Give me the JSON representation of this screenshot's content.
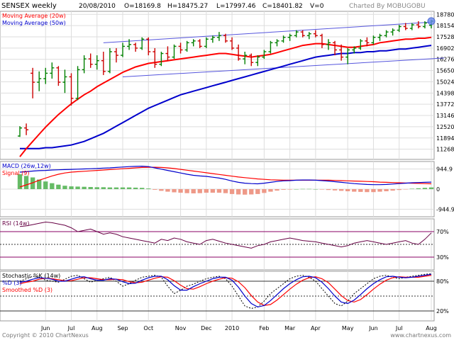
{
  "header": {
    "title": "SENSEX weekly",
    "date": "20/08/2010",
    "open": "O=18169.8",
    "high": "H=18475.27",
    "low": "L=17997.46",
    "close": "C=18401.82",
    "volume": "V=0",
    "charted_by": "Charted By MOBUGOBU"
  },
  "footer": {
    "copyright": "Copyright © 2010 ChartNexus",
    "brand": "www.chartnexus.com"
  },
  "colors": {
    "up_bar": "#008000",
    "down_bar": "#cc0000",
    "ma20": "#ff0000",
    "ma50": "#0000cc",
    "channel": "#5555dd",
    "macd_pos": "#66bb66",
    "macd_neg": "#ee9988",
    "rsi": "#660044",
    "rsi_ref": "#880066",
    "grid": "#dddddd"
  },
  "x_axis": {
    "labels": [
      {
        "text": "Jun",
        "idx": 4
      },
      {
        "text": "Jul",
        "idx": 8
      },
      {
        "text": "Aug",
        "idx": 12
      },
      {
        "text": "Sep",
        "idx": 16
      },
      {
        "text": "Oct",
        "idx": 20
      },
      {
        "text": "Nov",
        "idx": 25
      },
      {
        "text": "Dec",
        "idx": 29
      },
      {
        "text": "2010",
        "idx": 33
      },
      {
        "text": "Feb",
        "idx": 38
      },
      {
        "text": "Mar",
        "idx": 42
      },
      {
        "text": "Apr",
        "idx": 46
      },
      {
        "text": "May",
        "idx": 51
      },
      {
        "text": "Jun",
        "idx": 55
      },
      {
        "text": "Jul",
        "idx": 59
      },
      {
        "text": "Aug",
        "idx": 64
      }
    ]
  },
  "chart_data": [
    {
      "type": "candlestick",
      "legend": [
        {
          "text": "Moving Average (20w)",
          "color": "#ff0000"
        },
        {
          "text": "Moving Average (50w)",
          "color": "#0000cc"
        }
      ],
      "ylim": [
        10700,
        18950
      ],
      "y_ticks": [
        18780,
        18154,
        17528,
        16902,
        16276,
        15650,
        15024,
        14398,
        13772,
        13146,
        12520,
        11894,
        11268
      ],
      "bars": [
        {
          "o": 12000,
          "h": 12550,
          "l": 11950,
          "c": 12450
        },
        {
          "o": 12450,
          "h": 12700,
          "l": 12050,
          "c": 12350
        },
        {
          "o": 15500,
          "h": 15800,
          "l": 14100,
          "c": 15000
        },
        {
          "o": 15000,
          "h": 15600,
          "l": 14500,
          "c": 15200
        },
        {
          "o": 15200,
          "h": 15800,
          "l": 14900,
          "c": 15500
        },
        {
          "o": 15500,
          "h": 16100,
          "l": 15200,
          "c": 15800
        },
        {
          "o": 15800,
          "h": 15900,
          "l": 14800,
          "c": 15000
        },
        {
          "o": 15000,
          "h": 15700,
          "l": 14400,
          "c": 15300
        },
        {
          "o": 15300,
          "h": 15500,
          "l": 13700,
          "c": 14100
        },
        {
          "o": 14100,
          "h": 15900,
          "l": 14000,
          "c": 15700
        },
        {
          "o": 15700,
          "h": 16500,
          "l": 15500,
          "c": 16300
        },
        {
          "o": 16300,
          "h": 16600,
          "l": 15800,
          "c": 16000
        },
        {
          "o": 16000,
          "h": 16500,
          "l": 15700,
          "c": 16200
        },
        {
          "o": 16200,
          "h": 16700,
          "l": 15400,
          "c": 15600
        },
        {
          "o": 15600,
          "h": 16900,
          "l": 15500,
          "c": 16700
        },
        {
          "o": 16700,
          "h": 16900,
          "l": 16100,
          "c": 16500
        },
        {
          "o": 16500,
          "h": 17200,
          "l": 16400,
          "c": 17000
        },
        {
          "o": 17000,
          "h": 17400,
          "l": 16800,
          "c": 17100
        },
        {
          "o": 17100,
          "h": 17200,
          "l": 16700,
          "c": 16900
        },
        {
          "o": 16900,
          "h": 17500,
          "l": 16800,
          "c": 17400
        },
        {
          "o": 17400,
          "h": 17500,
          "l": 16500,
          "c": 16700
        },
        {
          "o": 16700,
          "h": 16900,
          "l": 15800,
          "c": 16000
        },
        {
          "o": 16000,
          "h": 16700,
          "l": 15900,
          "c": 16600
        },
        {
          "o": 16600,
          "h": 17000,
          "l": 16200,
          "c": 16400
        },
        {
          "o": 16400,
          "h": 17100,
          "l": 16300,
          "c": 17000
        },
        {
          "o": 17000,
          "h": 17200,
          "l": 16600,
          "c": 16800
        },
        {
          "o": 16800,
          "h": 17300,
          "l": 16700,
          "c": 17200
        },
        {
          "o": 17200,
          "h": 17400,
          "l": 17000,
          "c": 17300
        },
        {
          "o": 17300,
          "h": 17400,
          "l": 16900,
          "c": 17000
        },
        {
          "o": 17000,
          "h": 17500,
          "l": 16900,
          "c": 17400
        },
        {
          "o": 17400,
          "h": 17600,
          "l": 17200,
          "c": 17500
        },
        {
          "o": 17500,
          "h": 17800,
          "l": 17300,
          "c": 17600
        },
        {
          "o": 17600,
          "h": 17700,
          "l": 17200,
          "c": 17300
        },
        {
          "o": 17300,
          "h": 17500,
          "l": 16800,
          "c": 16900
        },
        {
          "o": 16900,
          "h": 17100,
          "l": 16200,
          "c": 16300
        },
        {
          "o": 16300,
          "h": 16700,
          "l": 16000,
          "c": 16500
        },
        {
          "o": 16500,
          "h": 16600,
          "l": 15900,
          "c": 16100
        },
        {
          "o": 16100,
          "h": 16500,
          "l": 15900,
          "c": 16400
        },
        {
          "o": 16400,
          "h": 16800,
          "l": 16300,
          "c": 16700
        },
        {
          "o": 16700,
          "h": 17300,
          "l": 16600,
          "c": 17200
        },
        {
          "o": 17200,
          "h": 17400,
          "l": 17000,
          "c": 17300
        },
        {
          "o": 17300,
          "h": 17600,
          "l": 17200,
          "c": 17500
        },
        {
          "o": 17500,
          "h": 17700,
          "l": 17300,
          "c": 17600
        },
        {
          "o": 17600,
          "h": 17900,
          "l": 17500,
          "c": 17800
        },
        {
          "o": 17800,
          "h": 17900,
          "l": 17500,
          "c": 17600
        },
        {
          "o": 17600,
          "h": 17800,
          "l": 17400,
          "c": 17700
        },
        {
          "o": 17700,
          "h": 17900,
          "l": 17500,
          "c": 17600
        },
        {
          "o": 17600,
          "h": 17700,
          "l": 16900,
          "c": 17100
        },
        {
          "o": 17100,
          "h": 17400,
          "l": 16800,
          "c": 17200
        },
        {
          "o": 17200,
          "h": 17300,
          "l": 16500,
          "c": 16800
        },
        {
          "o": 16800,
          "h": 17100,
          "l": 16200,
          "c": 16400
        },
        {
          "o": 16400,
          "h": 16900,
          "l": 16000,
          "c": 16800
        },
        {
          "o": 16800,
          "h": 17000,
          "l": 16600,
          "c": 16900
        },
        {
          "o": 16900,
          "h": 17400,
          "l": 16800,
          "c": 17300
        },
        {
          "o": 17300,
          "h": 17500,
          "l": 17000,
          "c": 17200
        },
        {
          "o": 17200,
          "h": 17600,
          "l": 17100,
          "c": 17500
        },
        {
          "o": 17500,
          "h": 17700,
          "l": 17300,
          "c": 17600
        },
        {
          "o": 17600,
          "h": 17900,
          "l": 17500,
          "c": 17800
        },
        {
          "o": 17800,
          "h": 18000,
          "l": 17600,
          "c": 17900
        },
        {
          "o": 17900,
          "h": 18200,
          "l": 17800,
          "c": 18100
        },
        {
          "o": 18100,
          "h": 18300,
          "l": 17900,
          "c": 18000
        },
        {
          "o": 18000,
          "h": 18300,
          "l": 17900,
          "c": 18200
        },
        {
          "o": 18200,
          "h": 18400,
          "l": 18000,
          "c": 18100
        },
        {
          "o": 18100,
          "h": 18400,
          "l": 18000,
          "c": 18300
        },
        {
          "o": 18169.8,
          "h": 18475.27,
          "l": 17997.46,
          "c": 18401.82
        }
      ],
      "ma20": [
        10850,
        11300,
        11700,
        12100,
        12500,
        12850,
        13200,
        13500,
        13800,
        14050,
        14300,
        14500,
        14750,
        14950,
        15150,
        15350,
        15550,
        15700,
        15850,
        15950,
        16050,
        16100,
        16150,
        16200,
        16250,
        16300,
        16350,
        16400,
        16450,
        16500,
        16550,
        16600,
        16600,
        16550,
        16500,
        16450,
        16400,
        16450,
        16500,
        16550,
        16650,
        16750,
        16850,
        16950,
        17050,
        17100,
        17150,
        17150,
        17100,
        17050,
        17000,
        16950,
        16950,
        17000,
        17050,
        17100,
        17200,
        17250,
        17300,
        17350,
        17400,
        17400,
        17450,
        17450,
        17500
      ],
      "ma50": [
        11300,
        11300,
        11300,
        11300,
        11350,
        11350,
        11400,
        11450,
        11500,
        11600,
        11700,
        11850,
        12000,
        12150,
        12350,
        12550,
        12750,
        12950,
        13150,
        13350,
        13550,
        13700,
        13850,
        14000,
        14150,
        14300,
        14400,
        14500,
        14600,
        14700,
        14800,
        14900,
        15000,
        15100,
        15200,
        15300,
        15400,
        15500,
        15600,
        15700,
        15800,
        15900,
        16000,
        16100,
        16200,
        16300,
        16400,
        16450,
        16500,
        16550,
        16600,
        16600,
        16650,
        16650,
        16700,
        16700,
        16750,
        16750,
        16800,
        16850,
        16850,
        16900,
        16950,
        17000,
        17050
      ],
      "channel_upper": [
        {
          "idx": 13,
          "value": 17200
        },
        {
          "idx": 64,
          "value": 18350
        }
      ],
      "channel_lower": [
        {
          "idx": 16,
          "value": 15300
        },
        {
          "idx": 66,
          "value": 16350
        }
      ]
    },
    {
      "type": "bar",
      "name": "MACD",
      "legend": [
        {
          "text": "MACD (26w,12w)",
          "color": "#0000cc"
        },
        {
          "text": "Signal (9)",
          "color": "#ff0000"
        }
      ],
      "ylim": [
        -1300,
        1300
      ],
      "y_ticks": [
        {
          "value": 944.9,
          "label": "944.9"
        },
        {
          "value": 0,
          "label": "0"
        },
        {
          "value": -944.9,
          "label": "-944.9"
        }
      ],
      "macd": [
        800,
        820,
        850,
        870,
        880,
        900,
        910,
        920,
        930,
        940,
        950,
        960,
        970,
        990,
        1000,
        1020,
        1040,
        1060,
        1070,
        1080,
        1060,
        1000,
        940,
        880,
        820,
        760,
        700,
        650,
        620,
        600,
        560,
        520,
        460,
        380,
        320,
        280,
        260,
        250,
        280,
        320,
        360,
        390,
        400,
        420,
        430,
        430,
        420,
        400,
        380,
        350,
        320,
        290,
        260,
        240,
        220,
        210,
        210,
        220,
        240,
        260,
        280,
        300,
        310,
        320,
        330
      ],
      "signal": [
        100,
        200,
        300,
        420,
        520,
        620,
        700,
        760,
        800,
        820,
        840,
        860,
        880,
        900,
        920,
        940,
        960,
        980,
        1000,
        1020,
        1030,
        1030,
        1020,
        1000,
        970,
        930,
        890,
        850,
        810,
        770,
        730,
        690,
        650,
        610,
        570,
        540,
        510,
        480,
        460,
        440,
        430,
        420,
        420,
        420,
        420,
        420,
        420,
        420,
        420,
        410,
        400,
        390,
        380,
        370,
        360,
        350,
        330,
        320,
        310,
        300,
        290,
        280,
        270,
        260,
        250
      ],
      "histogram": [
        700,
        620,
        550,
        450,
        360,
        280,
        210,
        160,
        130,
        120,
        110,
        100,
        90,
        90,
        80,
        80,
        80,
        80,
        70,
        60,
        30,
        -30,
        -80,
        -120,
        -150,
        -170,
        -190,
        -200,
        -190,
        -170,
        -170,
        -170,
        -190,
        -230,
        -250,
        -260,
        -250,
        -230,
        -180,
        -120,
        -70,
        -30,
        -20,
        0,
        10,
        10,
        0,
        -20,
        -40,
        -60,
        -80,
        -100,
        -120,
        -130,
        -140,
        -140,
        -120,
        -100,
        -70,
        -40,
        -10,
        20,
        40,
        60,
        80
      ]
    },
    {
      "type": "line",
      "name": "RSI",
      "legend": [
        {
          "text": "RSI (14w)",
          "color": "#660044"
        }
      ],
      "ylim": [
        10,
        90
      ],
      "y_ticks": [
        {
          "value": 70,
          "label": "70%"
        },
        {
          "value": 30,
          "label": "30%"
        }
      ],
      "reference_lines": [
        70,
        50,
        30
      ],
      "values": [
        78,
        79,
        81,
        83,
        85,
        84,
        82,
        80,
        76,
        70,
        72,
        74,
        70,
        66,
        68,
        66,
        62,
        60,
        58,
        56,
        54,
        52,
        58,
        56,
        60,
        58,
        54,
        52,
        50,
        56,
        58,
        55,
        52,
        50,
        48,
        46,
        44,
        48,
        50,
        54,
        56,
        58,
        60,
        58,
        56,
        55,
        54,
        52,
        50,
        48,
        46,
        48,
        52,
        54,
        56,
        54,
        52,
        50,
        52,
        54,
        56,
        52,
        50,
        58,
        68
      ]
    },
    {
      "type": "line",
      "name": "Stochastic",
      "legend": [
        {
          "text": "Stochastic %K (14w)",
          "color": "#000000"
        },
        {
          "text": "%D (3)",
          "color": "#0000cc"
        },
        {
          "text": "Smoothed %D (3)",
          "color": "#ff0000"
        }
      ],
      "ylim": [
        0,
        100
      ],
      "y_ticks": [
        {
          "value": 80,
          "label": "80%"
        },
        {
          "value": 20,
          "label": "20%"
        }
      ],
      "reference_lines": [
        80,
        50,
        20
      ],
      "k": [
        80,
        85,
        90,
        88,
        82,
        80,
        78,
        84,
        90,
        92,
        85,
        78,
        82,
        85,
        88,
        80,
        70,
        75,
        82,
        88,
        90,
        92,
        88,
        70,
        55,
        62,
        70,
        74,
        80,
        85,
        88,
        90,
        85,
        70,
        50,
        30,
        25,
        28,
        40,
        55,
        65,
        75,
        85,
        90,
        92,
        88,
        80,
        65,
        50,
        35,
        30,
        40,
        55,
        65,
        75,
        85,
        90,
        92,
        88,
        85,
        88,
        90,
        92,
        94,
        95
      ],
      "d": [
        78,
        80,
        84,
        87,
        86,
        84,
        80,
        80,
        84,
        88,
        89,
        85,
        82,
        82,
        85,
        84,
        79,
        75,
        76,
        82,
        87,
        90,
        90,
        83,
        71,
        62,
        62,
        69,
        75,
        80,
        85,
        88,
        88,
        82,
        68,
        50,
        35,
        28,
        31,
        41,
        53,
        65,
        75,
        83,
        89,
        90,
        87,
        78,
        65,
        50,
        38,
        35,
        42,
        53,
        65,
        75,
        83,
        89,
        90,
        88,
        87,
        88,
        90,
        92,
        94
      ],
      "smoothed_d": [
        75,
        78,
        80,
        84,
        86,
        85,
        83,
        81,
        81,
        84,
        87,
        87,
        85,
        83,
        83,
        84,
        83,
        79,
        77,
        78,
        82,
        86,
        89,
        88,
        81,
        72,
        65,
        64,
        69,
        75,
        80,
        84,
        87,
        86,
        79,
        67,
        51,
        38,
        31,
        33,
        42,
        53,
        64,
        74,
        82,
        87,
        89,
        85,
        77,
        64,
        51,
        41,
        38,
        43,
        53,
        64,
        74,
        82,
        87,
        89,
        88,
        88,
        88,
        90,
        92
      ]
    }
  ]
}
